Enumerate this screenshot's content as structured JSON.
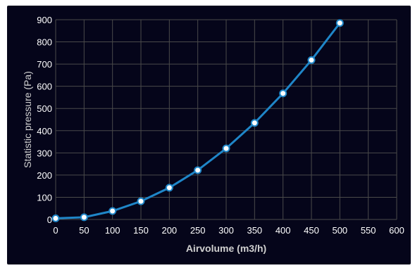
{
  "chart_data": {
    "type": "line",
    "title": "",
    "xlabel": "Airvolume (m3/h)",
    "ylabel": "Statistic pressure (Pa)",
    "xlim": [
      0,
      600
    ],
    "ylim": [
      0,
      900
    ],
    "x_ticks": [
      "0",
      "50",
      "100",
      "150",
      "200",
      "250",
      "300",
      "350",
      "400",
      "450",
      "500",
      "550",
      "600"
    ],
    "y_ticks": [
      "0",
      "100",
      "200",
      "300",
      "400",
      "500",
      "600",
      "700",
      "800",
      "900"
    ],
    "grid": true,
    "legend": "none",
    "series": [
      {
        "color": "#1f86c8",
        "x": [
          0,
          50,
          100,
          150,
          200,
          250,
          300,
          350,
          400,
          450,
          500
        ],
        "y": [
          5,
          10,
          38,
          82,
          143,
          222,
          320,
          435,
          568,
          718,
          885
        ]
      }
    ]
  },
  "colors": {
    "background": "#05051a",
    "grid": "#4a4a4a",
    "tick_text": "#ffffff",
    "axis_title": "#d0d0d0"
  }
}
